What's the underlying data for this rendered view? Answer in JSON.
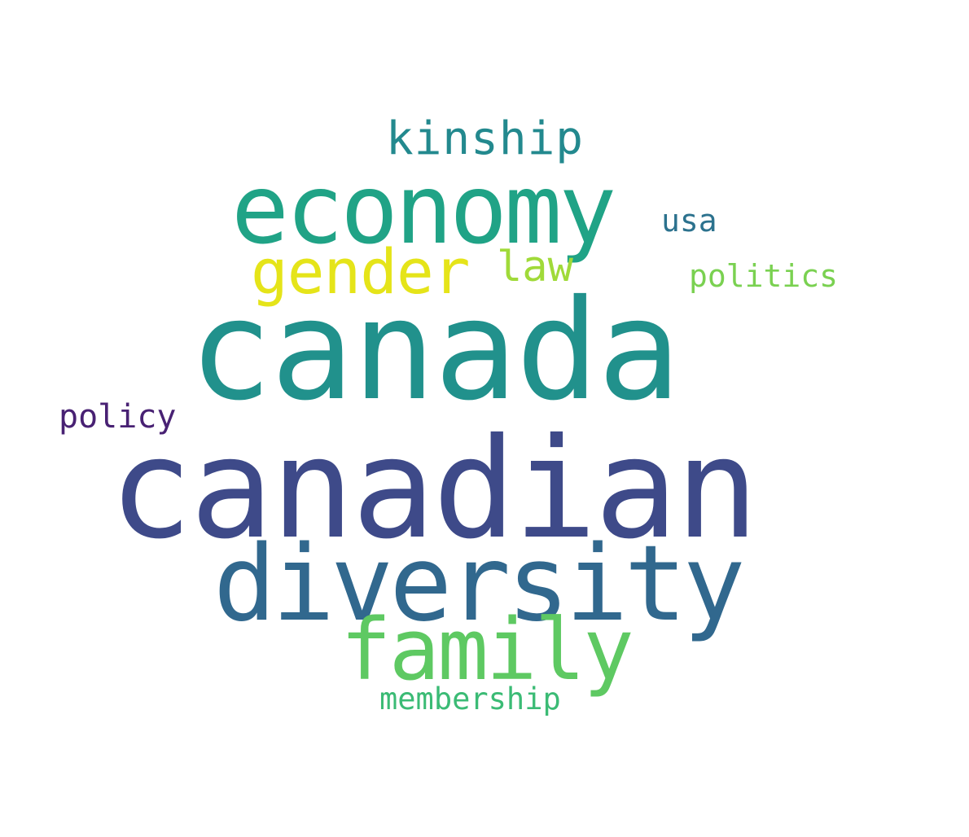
{
  "word_cloud": {
    "words": {
      "canada": {
        "text": "canada",
        "color": "#21918c"
      },
      "canadian": {
        "text": "canadian",
        "color": "#3e4a89"
      },
      "economy": {
        "text": "economy",
        "color": "#20a386"
      },
      "diversity": {
        "text": "diversity",
        "color": "#31688e"
      },
      "family": {
        "text": "family",
        "color": "#5ec962"
      },
      "gender": {
        "text": "gender",
        "color": "#e5e419"
      },
      "kinship": {
        "text": "kinship",
        "color": "#23898e"
      },
      "law": {
        "text": "law",
        "color": "#a0da39"
      },
      "usa": {
        "text": "usa",
        "color": "#2c728e"
      },
      "politics": {
        "text": "politics",
        "color": "#7ad151"
      },
      "policy": {
        "text": "policy",
        "color": "#482173"
      },
      "membership": {
        "text": "membership",
        "color": "#3bbb75"
      }
    }
  }
}
